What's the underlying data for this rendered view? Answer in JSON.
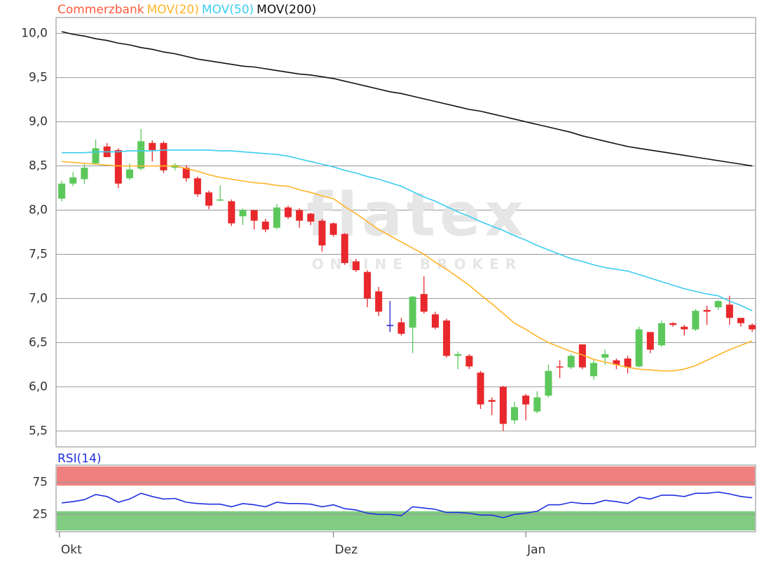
{
  "chart_data": [
    {
      "type": "candlestick",
      "watermark": {
        "logo": "flatex",
        "tagline": "ONLINE BROKER"
      },
      "series": [
        {
          "name": "Commerzbank",
          "color": "#ff5a3c",
          "up_color": "#5cc85c",
          "down_color": "#e8282c",
          "flat_color": "#2020c0",
          "open": [
            8.13,
            8.3,
            8.35,
            8.53,
            8.72,
            8.68,
            8.36,
            8.47,
            8.76,
            8.76,
            8.48,
            8.48,
            8.36,
            8.2,
            8.11,
            8.1,
            7.93,
            8.0,
            7.87,
            7.8,
            8.03,
            8.0,
            7.96,
            7.88,
            7.85,
            7.73,
            7.42,
            7.3,
            7.08,
            6.7,
            6.73,
            6.67,
            7.05,
            6.82,
            6.75,
            6.35,
            6.35,
            6.16,
            5.85,
            6.0,
            5.62,
            5.9,
            5.72,
            5.9,
            6.23,
            6.22,
            6.48,
            6.12,
            6.33,
            6.3,
            6.32,
            6.23,
            6.62,
            6.47,
            6.72,
            6.68,
            6.65,
            6.87,
            6.9,
            6.93,
            6.78,
            6.7
          ],
          "high": [
            8.33,
            8.43,
            8.52,
            8.8,
            8.76,
            8.7,
            8.53,
            8.92,
            8.79,
            8.78,
            8.53,
            8.51,
            8.38,
            8.22,
            8.28,
            8.12,
            8.02,
            8.0,
            7.9,
            8.07,
            8.05,
            8.02,
            7.97,
            7.9,
            7.86,
            7.74,
            7.45,
            7.32,
            7.13,
            6.97,
            6.78,
            7.03,
            7.25,
            6.85,
            6.77,
            6.4,
            6.37,
            6.18,
            5.88,
            6.01,
            5.83,
            5.92,
            5.95,
            6.25,
            6.3,
            6.37,
            6.48,
            6.3,
            6.42,
            6.32,
            6.35,
            6.68,
            6.62,
            6.75,
            6.73,
            6.7,
            6.88,
            6.92,
            6.98,
            7.03,
            6.78,
            6.72
          ],
          "low": [
            8.1,
            8.27,
            8.3,
            8.52,
            8.6,
            8.25,
            8.34,
            8.45,
            8.55,
            8.42,
            8.45,
            8.32,
            8.15,
            8.01,
            8.1,
            7.82,
            7.83,
            7.78,
            7.75,
            7.78,
            7.9,
            7.8,
            7.83,
            7.53,
            7.7,
            7.38,
            7.3,
            6.9,
            6.8,
            6.62,
            6.58,
            6.38,
            6.83,
            6.65,
            6.33,
            6.2,
            6.2,
            5.75,
            5.68,
            5.5,
            5.58,
            5.62,
            5.7,
            5.88,
            6.1,
            6.2,
            6.2,
            6.08,
            6.25,
            6.2,
            6.15,
            6.22,
            6.38,
            6.45,
            6.68,
            6.58,
            6.63,
            6.7,
            6.87,
            6.7,
            6.68,
            6.62
          ],
          "close": [
            8.3,
            8.37,
            8.48,
            8.7,
            8.6,
            8.3,
            8.46,
            8.78,
            8.68,
            8.45,
            8.51,
            8.36,
            8.18,
            8.05,
            8.12,
            7.85,
            8.0,
            7.88,
            7.78,
            8.03,
            7.92,
            7.88,
            7.87,
            7.6,
            7.72,
            7.4,
            7.32,
            7.0,
            6.85,
            6.7,
            6.6,
            7.02,
            6.85,
            6.67,
            6.35,
            6.37,
            6.23,
            5.8,
            5.83,
            5.58,
            5.77,
            5.8,
            5.88,
            6.18,
            6.22,
            6.35,
            6.22,
            6.27,
            6.37,
            6.25,
            6.22,
            6.65,
            6.42,
            6.72,
            6.7,
            6.65,
            6.86,
            6.85,
            6.97,
            6.78,
            6.72,
            6.65
          ]
        },
        {
          "name": "MOV(20)",
          "color": "#ffb428",
          "values": [
            8.55,
            8.54,
            8.53,
            8.52,
            8.51,
            8.5,
            8.5,
            8.5,
            8.5,
            8.5,
            8.5,
            8.47,
            8.44,
            8.4,
            8.37,
            8.35,
            8.33,
            8.31,
            8.3,
            8.28,
            8.27,
            8.23,
            8.2,
            8.16,
            8.13,
            8.04,
            7.96,
            7.87,
            7.78,
            7.71,
            7.64,
            7.57,
            7.5,
            7.41,
            7.33,
            7.24,
            7.15,
            7.04,
            6.94,
            6.83,
            6.72,
            6.65,
            6.57,
            6.5,
            6.45,
            6.4,
            6.36,
            6.31,
            6.28,
            6.25,
            6.22,
            6.2,
            6.19,
            6.18,
            6.18,
            6.2,
            6.24,
            6.3,
            6.36,
            6.42,
            6.47,
            6.52
          ]
        },
        {
          "name": "MOV(50)",
          "color": "#3ccdf0",
          "values": [
            8.65,
            8.65,
            8.65,
            8.66,
            8.66,
            8.66,
            8.67,
            8.67,
            8.67,
            8.68,
            8.68,
            8.68,
            8.68,
            8.68,
            8.67,
            8.67,
            8.66,
            8.65,
            8.64,
            8.63,
            8.61,
            8.58,
            8.55,
            8.52,
            8.49,
            8.45,
            8.42,
            8.38,
            8.35,
            8.31,
            8.27,
            8.21,
            8.15,
            8.1,
            8.04,
            7.98,
            7.93,
            7.87,
            7.82,
            7.77,
            7.71,
            7.66,
            7.6,
            7.55,
            7.5,
            7.45,
            7.42,
            7.38,
            7.35,
            7.33,
            7.31,
            7.27,
            7.23,
            7.19,
            7.15,
            7.11,
            7.08,
            7.05,
            7.03,
            6.97,
            6.92,
            6.86
          ]
        },
        {
          "name": "MOV(200)",
          "color": "#111111",
          "values": [
            10.02,
            9.99,
            9.97,
            9.94,
            9.92,
            9.89,
            9.87,
            9.84,
            9.82,
            9.79,
            9.77,
            9.74,
            9.71,
            9.69,
            9.67,
            9.65,
            9.63,
            9.62,
            9.6,
            9.58,
            9.56,
            9.54,
            9.53,
            9.51,
            9.49,
            9.46,
            9.43,
            9.4,
            9.37,
            9.34,
            9.32,
            9.29,
            9.26,
            9.23,
            9.2,
            9.17,
            9.14,
            9.12,
            9.09,
            9.06,
            9.03,
            9.0,
            8.97,
            8.94,
            8.91,
            8.88,
            8.84,
            8.81,
            8.78,
            8.75,
            8.72,
            8.7,
            8.68,
            8.66,
            8.64,
            8.62,
            8.6,
            8.58,
            8.56,
            8.54,
            8.52,
            8.5
          ]
        }
      ],
      "xlim": [
        -0.5,
        61.3
      ],
      "ylim": [
        5.32,
        10.18
      ],
      "yticks": [
        {
          "value": 5.5,
          "label": "5,5"
        },
        {
          "value": 6.0,
          "label": "6,0"
        },
        {
          "value": 6.5,
          "label": "6,5"
        },
        {
          "value": 7.0,
          "label": "7,0"
        },
        {
          "value": 7.5,
          "label": "7,5"
        },
        {
          "value": 8.0,
          "label": "8,0"
        },
        {
          "value": 8.5,
          "label": "8,5"
        },
        {
          "value": 9.0,
          "label": "9,0"
        },
        {
          "value": 9.5,
          "label": "9,5"
        },
        {
          "value": 10.0,
          "label": "10,0"
        }
      ],
      "grid": true
    },
    {
      "type": "line",
      "title": "RSI(14)",
      "series": [
        {
          "name": "RSI(14)",
          "color": "#2030e0",
          "values": [
            43,
            45,
            48,
            56,
            53,
            44,
            49,
            58,
            53,
            49,
            50,
            44,
            42,
            41,
            41,
            37,
            42,
            40,
            37,
            44,
            42,
            42,
            41,
            37,
            40,
            34,
            32,
            27,
            25,
            25,
            23,
            37,
            35,
            33,
            28,
            28,
            27,
            24,
            24,
            20,
            25,
            27,
            30,
            40,
            40,
            44,
            42,
            42,
            47,
            45,
            42,
            52,
            49,
            55,
            55,
            53,
            58,
            58,
            60,
            57,
            53,
            51
          ]
        }
      ],
      "bands": [
        {
          "from": 70,
          "to": 100,
          "color": "#f08080"
        },
        {
          "from": 0,
          "to": 30,
          "color": "#80cc80"
        }
      ],
      "xlim": [
        -0.5,
        61.3
      ],
      "ylim": [
        -2,
        102
      ],
      "yticks": [
        25,
        75
      ],
      "xticks": [
        {
          "value": -0.2,
          "label": "Okt"
        },
        {
          "value": 24,
          "label": "Dez"
        },
        {
          "value": 41,
          "label": "Jan"
        }
      ],
      "grid": true
    }
  ]
}
